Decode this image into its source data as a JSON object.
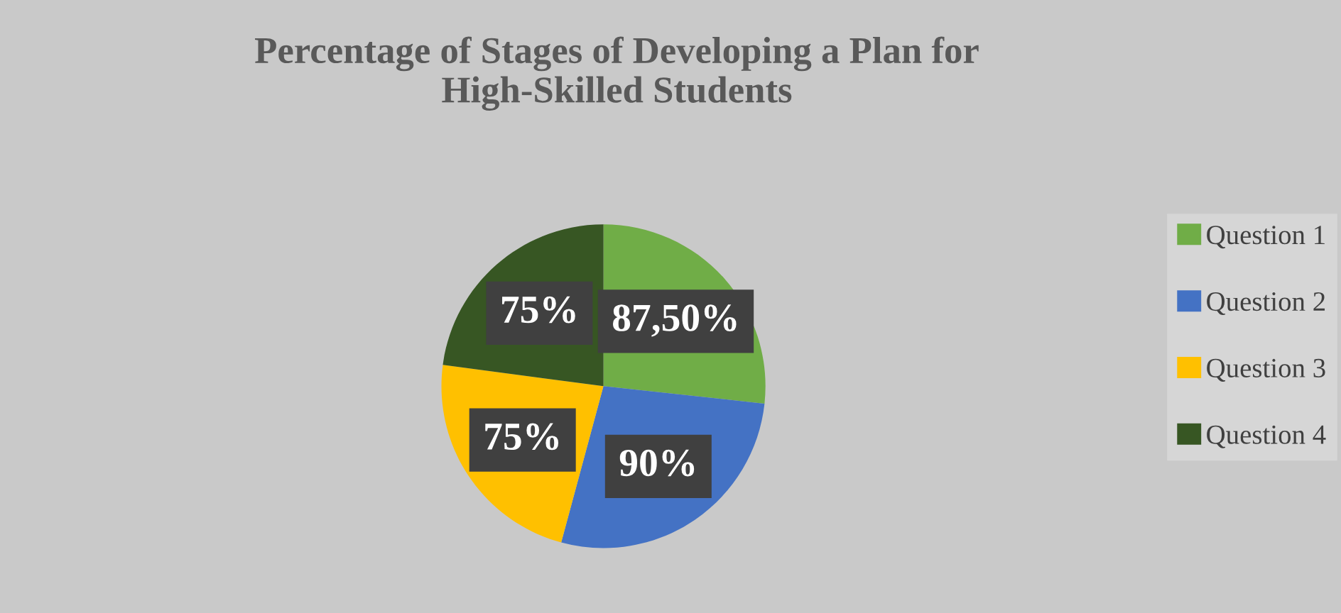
{
  "chart_data": {
    "type": "pie",
    "title": "Percentage of Stages of Developing a Plan for\nHigh-Skilled Students",
    "categories": [
      "Question 1",
      "Question 2",
      "Question 3",
      "Question 4"
    ],
    "values": [
      87.5,
      90,
      75,
      75
    ],
    "value_labels": [
      "87,50%",
      "90%",
      "75%",
      "75%"
    ],
    "colors": [
      "#70ad47",
      "#4472c4",
      "#ffc000",
      "#375623"
    ],
    "legend": "right"
  }
}
